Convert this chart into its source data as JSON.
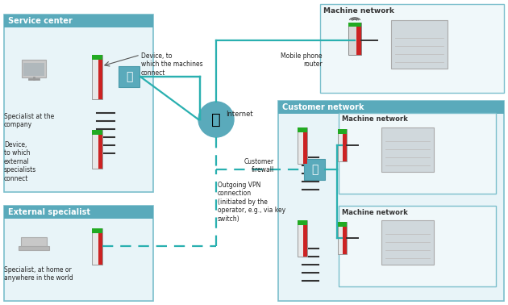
{
  "bg_color": "#ffffff",
  "box_border_color": "#7bbfcc",
  "box_fill_color": "#e8f4f8",
  "box_header_color": "#5aaabb",
  "teal_line_color": "#2ab0b0",
  "icon_blue": "#5aaabb",
  "labels": {
    "service_center": "Service center",
    "external_specialist": "External specialist",
    "machine_network": "Machine network",
    "customer_network": "Customer network",
    "internet": "Internet",
    "customer_firewall": "Customer\nfirewall",
    "mobile_phone_router": "Mobile phone\nrouter",
    "specialist_company": "Specialist at the\ncompany",
    "device_machines": "Device, to\nwhich the machines\nconnect",
    "device_external": "Device,\nto which\nexternal\nspecialists\nconnect",
    "specialist_home": "Specialist, at home or\nanywhere in the world",
    "outgoing_vpn": "Outgoing VPN\nconnection\n(initiated by the\noperator, e.g., via key\nswitch)"
  },
  "font_size_header": 7,
  "font_size_label": 6,
  "font_size_small": 5.5
}
